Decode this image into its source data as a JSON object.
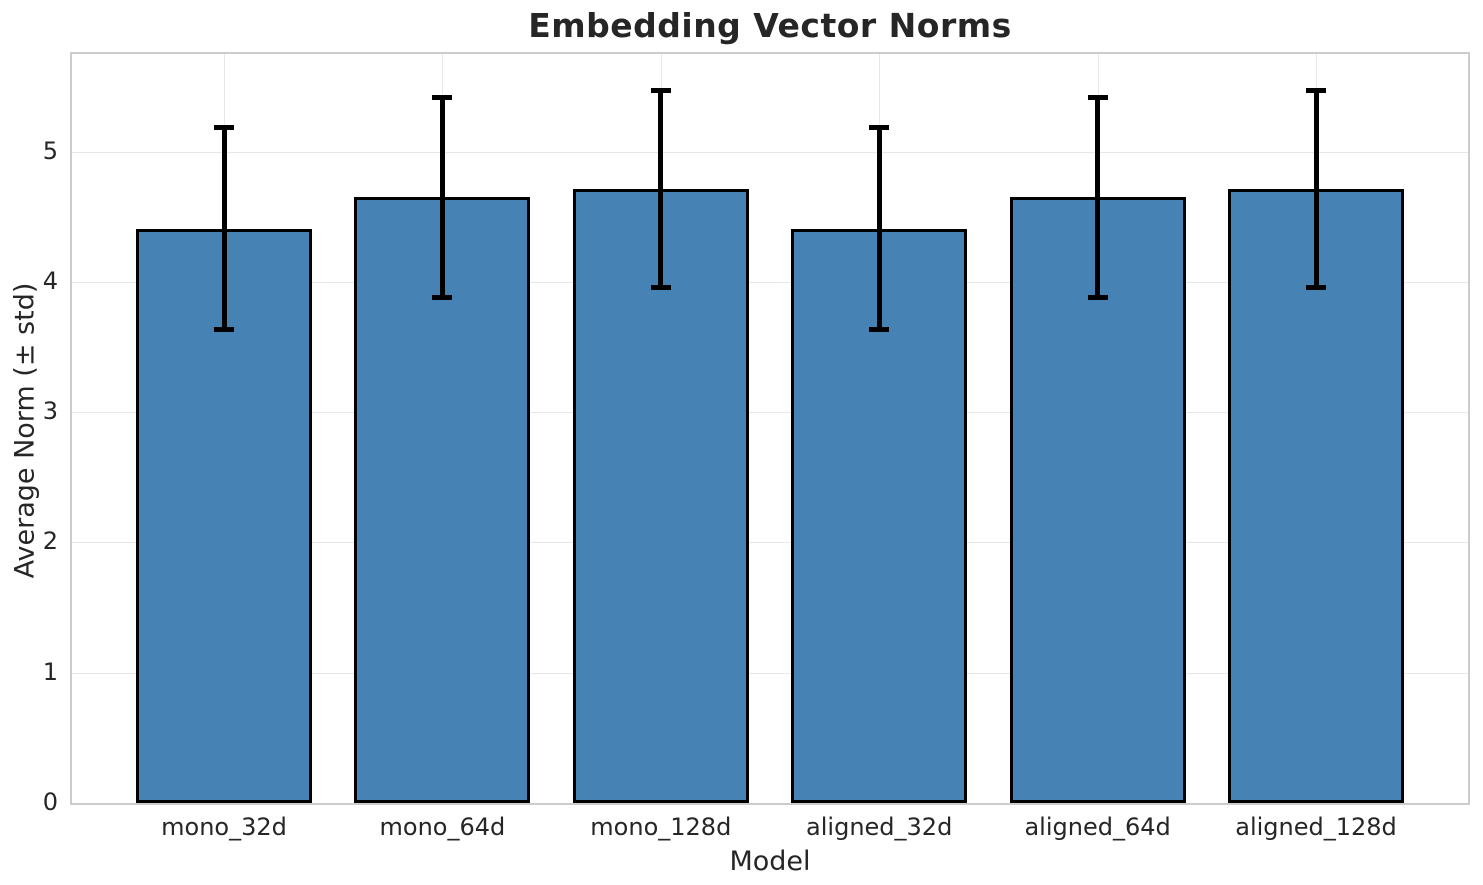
{
  "chart_data": {
    "type": "bar",
    "title": "Embedding Vector Norms",
    "xlabel": "Model",
    "ylabel": "Average Norm (± std)",
    "categories": [
      "mono_32d",
      "mono_64d",
      "mono_128d",
      "aligned_32d",
      "aligned_64d",
      "aligned_128d"
    ],
    "series": [
      {
        "name": "Average Norm",
        "values": [
          4.41,
          4.65,
          4.71,
          4.41,
          4.65,
          4.71
        ],
        "errors": [
          0.78,
          0.77,
          0.76,
          0.78,
          0.77,
          0.76
        ]
      }
    ],
    "ylim": [
      0,
      5.75
    ],
    "yticks": [
      0,
      1,
      2,
      3,
      4,
      5
    ],
    "grid": true,
    "grid_on_x": true,
    "legend": null,
    "error_bars": "std, black, capped",
    "colors": {
      "bar_fill": "#4682b4",
      "bar_edge": "#000000",
      "error_bar": "#000000",
      "grid_line": "#e7e7e7",
      "spine": "#cccccc",
      "text": "#262626"
    }
  }
}
